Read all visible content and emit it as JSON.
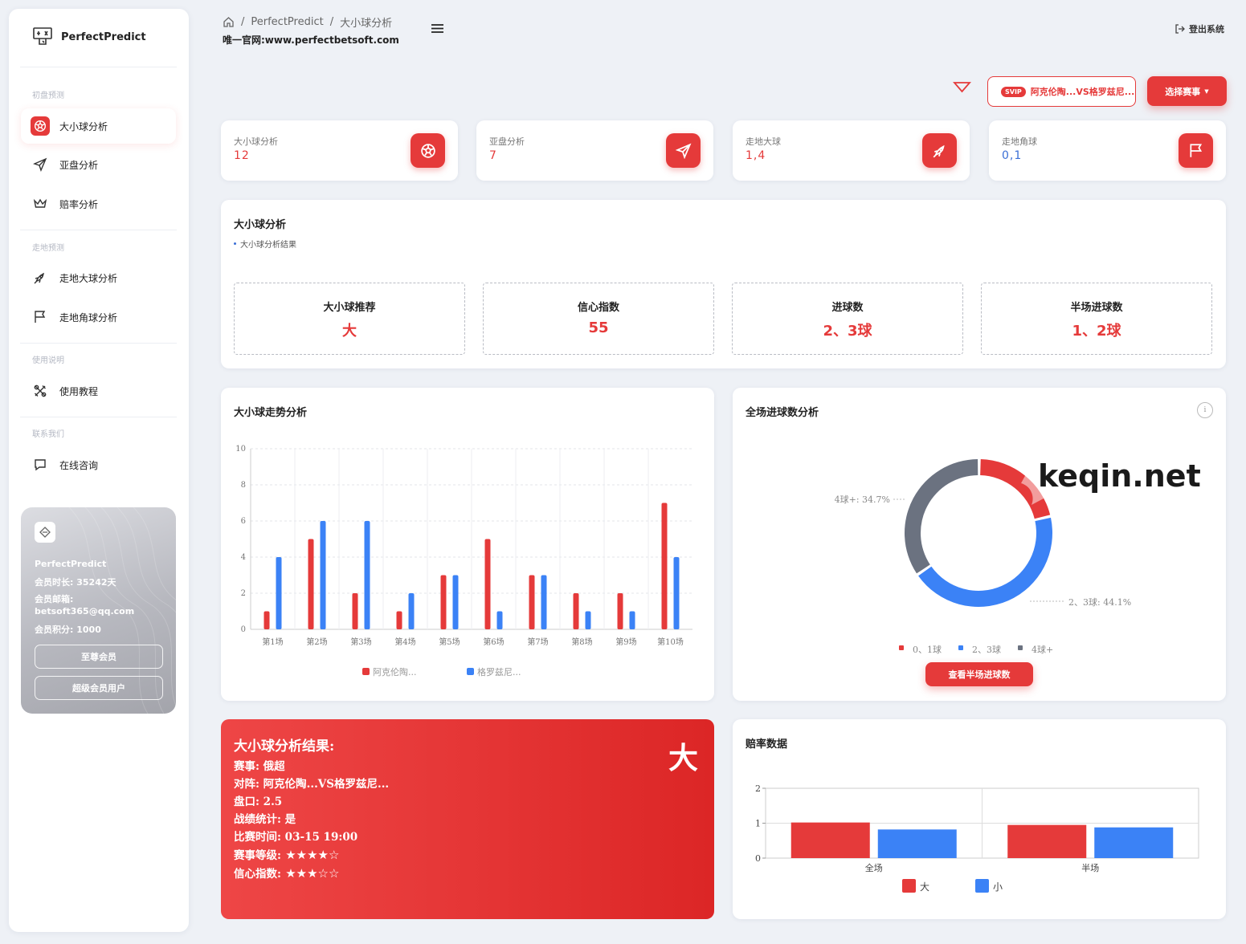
{
  "app": {
    "name": "PerfectPredict"
  },
  "header": {
    "breadcrumb": [
      "PerfectPredict",
      "大小球分析"
    ],
    "site": "唯一官网:www.perfectbetsoft.com",
    "logout_label": "登出系统"
  },
  "sidebar": {
    "sections": [
      {
        "title": "初盘预测",
        "items": [
          {
            "label": "大小球分析",
            "icon": "soccer-ball-icon"
          },
          {
            "label": "亚盘分析",
            "icon": "send-icon"
          },
          {
            "label": "赔率分析",
            "icon": "crown-icon"
          }
        ]
      },
      {
        "title": "走地预测",
        "items": [
          {
            "label": "走地大球分析",
            "icon": "rocket-icon"
          },
          {
            "label": "走地角球分析",
            "icon": "flag-icon"
          }
        ]
      },
      {
        "title": "使用说明",
        "items": [
          {
            "label": "使用教程",
            "icon": "tools-icon"
          }
        ]
      },
      {
        "title": "联系我们",
        "items": [
          {
            "label": "在线咨询",
            "icon": "chat-icon"
          }
        ]
      }
    ]
  },
  "member": {
    "name": "PerfectPredict",
    "duration": "会员时长: 35242天",
    "email_label": "会员邮箱:",
    "email": "betsoft365@qq.com",
    "points": "会员积分: 1000",
    "btn1": "至尊会员",
    "btn2": "超级会员用户"
  },
  "topbar": {
    "match_badge": "SVIP",
    "match_label": "阿克伦陶...VS格罗兹尼...",
    "select_button": "选择赛事"
  },
  "stats": [
    {
      "label": "大小球分析",
      "value": "12",
      "color": "#e53a3a",
      "icon": "soccer-ball-icon"
    },
    {
      "label": "亚盘分析",
      "value": "7",
      "color": "#e53a3a",
      "icon": "send-icon"
    },
    {
      "label": "走地大球",
      "value": "1,4",
      "color": "#e53a3a",
      "icon": "rocket-icon"
    },
    {
      "label": "走地角球",
      "value": "0,1",
      "color": "#3b6fd6",
      "icon": "flag-icon"
    }
  ],
  "analysis": {
    "title": "大小球分析",
    "subtitle": "大小球分析结果",
    "boxes": [
      {
        "label": "大小球推荐",
        "value": "大"
      },
      {
        "label": "信心指数",
        "value": "55"
      },
      {
        "label": "进球数",
        "value": "2、3球"
      },
      {
        "label": "半场进球数",
        "value": "1、2球"
      }
    ]
  },
  "trend": {
    "title": "大小球走势分析"
  },
  "goals": {
    "title": "全场进球数分析",
    "button": "查看半场进球数",
    "watermark": "keqin.net"
  },
  "result": {
    "title": "大小球分析结果:",
    "big_label": "大",
    "lines": [
      {
        "k": "赛事:",
        "v": "俄超"
      },
      {
        "k": "对阵:",
        "v": "阿克伦陶...VS格罗兹尼..."
      },
      {
        "k": "盘口:",
        "v": "2.5"
      },
      {
        "k": "战绩统计:",
        "v": "是"
      },
      {
        "k": "比赛时间:",
        "v": "03-15 19:00"
      },
      {
        "k": "赛事等级:",
        "v": "★★★★☆"
      },
      {
        "k": "信心指数:",
        "v": "★★★☆☆"
      }
    ]
  },
  "odds": {
    "title": "赔率数据"
  },
  "chart_data": [
    {
      "type": "bar",
      "title": "大小球走势分析",
      "categories": [
        "第1场",
        "第2场",
        "第3场",
        "第4场",
        "第5场",
        "第6场",
        "第7场",
        "第8场",
        "第9场",
        "第10场"
      ],
      "ylim": [
        0,
        10
      ],
      "yticks": [
        0,
        2,
        4,
        6,
        8,
        10
      ],
      "grid": true,
      "legend": "bottom",
      "series": [
        {
          "name": "阿克伦陶...",
          "color": "#e53a3a",
          "values": [
            1,
            5,
            2,
            1,
            3,
            5,
            3,
            2,
            2,
            7
          ]
        },
        {
          "name": "格罗兹尼...",
          "color": "#3b82f6",
          "values": [
            4,
            6,
            6,
            2,
            3,
            1,
            3,
            1,
            1,
            4
          ]
        }
      ]
    },
    {
      "type": "pie",
      "title": "全场进球数分析",
      "legend": "bottom",
      "slices": [
        {
          "label": "0、1球",
          "value": 21.2,
          "color": "#e53a3a"
        },
        {
          "label": "2、3球",
          "value": 44.1,
          "color": "#3b82f6"
        },
        {
          "label": "4球+",
          "value": 34.7,
          "color": "#6b7280"
        }
      ],
      "annotations": [
        "4球+: 34.7%",
        "2、3球: 44.1%"
      ]
    },
    {
      "type": "bar",
      "title": "赔率数据",
      "categories": [
        "全场",
        "半场"
      ],
      "ylim": [
        0,
        2
      ],
      "yticks": [
        0,
        1,
        2
      ],
      "legend": "bottom",
      "series": [
        {
          "name": "大",
          "color": "#e53a3a",
          "values": [
            1.02,
            0.95
          ]
        },
        {
          "name": "小",
          "color": "#3b82f6",
          "values": [
            0.82,
            0.88
          ]
        }
      ]
    }
  ]
}
